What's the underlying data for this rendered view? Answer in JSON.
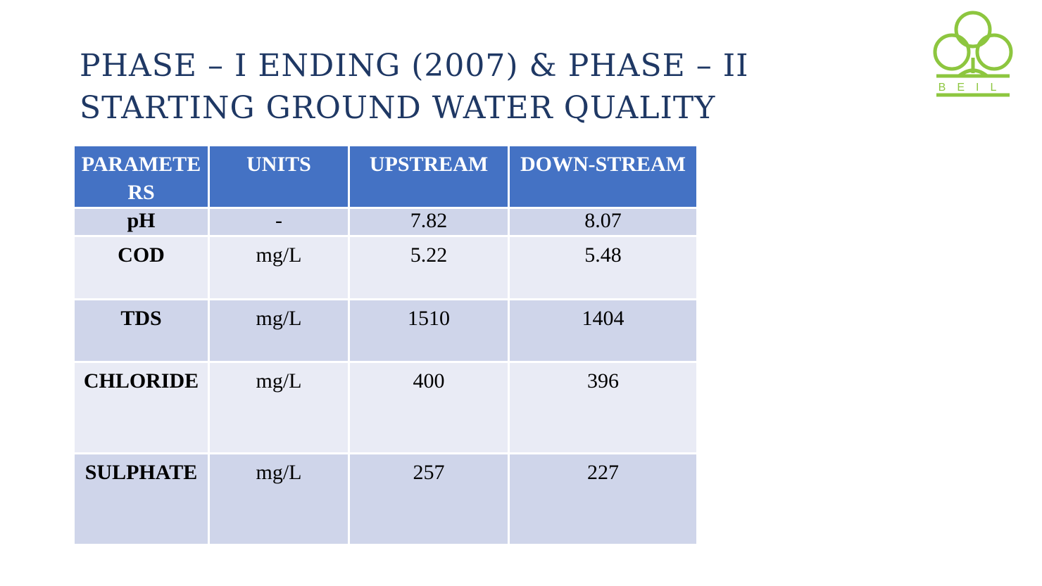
{
  "header": {
    "title": "PHASE – I ENDING (2007) & PHASE – II STARTING GROUND WATER QUALITY",
    "logo_text": "BEIL"
  },
  "table": {
    "columns": [
      "PARAMETERS",
      "UNITS",
      "UPSTREAM",
      "DOWN-STREAM"
    ],
    "rows": [
      [
        "pH",
        "-",
        "7.82",
        "8.07"
      ],
      [
        "COD",
        "mg/L",
        "5.22",
        "5.48"
      ],
      [
        "TDS",
        "mg/L",
        "1510",
        "1404"
      ],
      [
        "CHLORIDE",
        "mg/L",
        "400",
        "396"
      ],
      [
        "SULPHATE",
        "mg/L",
        "257",
        "227"
      ]
    ]
  }
}
